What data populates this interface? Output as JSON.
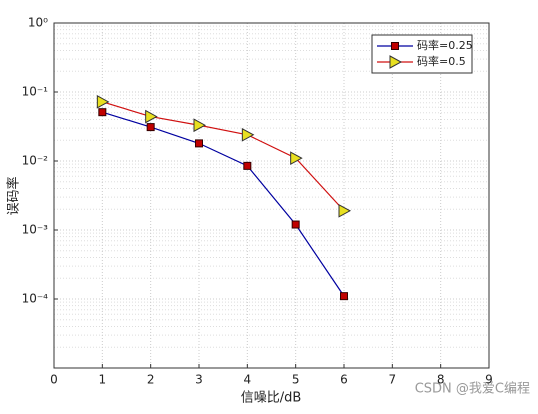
{
  "chart_data": {
    "type": "line",
    "xlabel": "信噪比/dB",
    "ylabel": "误码率",
    "x": [
      1,
      2,
      3,
      4,
      5,
      6
    ],
    "series": [
      {
        "name": "码率=0.25",
        "color": "#0000a0",
        "marker": "square",
        "marker_color": "#c00000",
        "values": [
          0.051,
          0.031,
          0.018,
          0.0085,
          0.0012,
          0.00011
        ]
      },
      {
        "name": "码率=0.5",
        "color": "#d01010",
        "marker": "triangle-right",
        "marker_color": "#e8e020",
        "values": [
          0.072,
          0.044,
          0.033,
          0.024,
          0.011,
          0.0019
        ]
      }
    ],
    "xlim": [
      0,
      9
    ],
    "xticks": [
      0,
      1,
      2,
      3,
      4,
      5,
      6,
      7,
      8,
      9
    ],
    "ylim": [
      1e-05,
      1
    ],
    "ylog": true,
    "yticks": [
      {
        "value": 1,
        "label": "10⁰"
      },
      {
        "value": 0.1,
        "label": "10⁻¹"
      },
      {
        "value": 0.01,
        "label": "10⁻²"
      },
      {
        "value": 0.001,
        "label": "10⁻³"
      },
      {
        "value": 0.0001,
        "label": "10⁻⁴"
      }
    ],
    "grid": true,
    "legend": "northeast",
    "watermark": "CSDN @我爱C编程"
  }
}
